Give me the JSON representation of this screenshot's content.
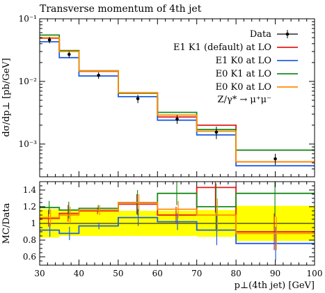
{
  "chart_data": [
    {
      "type": "line",
      "title": "Transverse momentum of 4th jet",
      "ylabel": "dσ/dp⊥ [pb/GeV]",
      "yscale": "log",
      "xlim": [
        30,
        100
      ],
      "ylim": [
        0.0003,
        0.1
      ],
      "y_ticks": [
        {
          "value": 0.001,
          "label": "10⁻³"
        },
        {
          "value": 0.01,
          "label": "10⁻²"
        },
        {
          "value": 0.1,
          "label": "10⁻¹"
        }
      ],
      "bin_edges": [
        30,
        35,
        40,
        50,
        60,
        70,
        80,
        100
      ],
      "legend_position": "top-right",
      "legend_extra": "Z/γ* → μ⁺μ⁻",
      "data": {
        "name": "Data",
        "color": "#000000",
        "x": [
          32.5,
          37.5,
          45,
          55,
          65,
          75,
          90
        ],
        "y": [
          0.046,
          0.027,
          0.0125,
          0.0053,
          0.0025,
          0.00155,
          0.00058
        ],
        "err_low": [
          0.0055,
          0.003,
          0.0015,
          0.0008,
          0.0004,
          0.00035,
          0.00012
        ],
        "err_high": [
          0.0055,
          0.003,
          0.0015,
          0.0008,
          0.0004,
          0.00035,
          0.00012
        ]
      },
      "series": [
        {
          "name": "E1 K1 (default) at LO",
          "color": "#e41a1c",
          "values": [
            0.049,
            0.031,
            0.0145,
            0.0065,
            0.0027,
            0.002,
            0.00052
          ]
        },
        {
          "name": "E1 K0 at LO",
          "color": "#1f5fe0",
          "values": [
            0.043,
            0.024,
            0.0122,
            0.0057,
            0.0024,
            0.0014,
            0.00045
          ]
        },
        {
          "name": "E0 K1 at LO",
          "color": "#1b8a1b",
          "values": [
            0.055,
            0.031,
            0.0148,
            0.0065,
            0.0032,
            0.0017,
            0.0008
          ]
        },
        {
          "name": "E0 K0 at LO",
          "color": "#ff8c00",
          "values": [
            0.05,
            0.03,
            0.0147,
            0.0066,
            0.0029,
            0.0016,
            0.00052
          ]
        }
      ]
    },
    {
      "type": "line",
      "ylabel": "MC/Data",
      "xlabel": "p⊥(4th jet) [GeV]",
      "xlim": [
        30,
        100
      ],
      "ylim": [
        0.5,
        1.5
      ],
      "x_ticks": [
        30,
        40,
        50,
        60,
        70,
        80,
        90,
        100
      ],
      "y_ticks": [
        0.6,
        0.8,
        1,
        1.2,
        1.4
      ],
      "bin_edges": [
        30,
        35,
        40,
        50,
        60,
        70,
        80,
        100
      ],
      "band": {
        "color": "#ffff00",
        "low": [
          0.83,
          0.85,
          0.85,
          0.85,
          0.85,
          0.84,
          0.79
        ],
        "high": [
          1.17,
          1.15,
          1.15,
          1.15,
          1.15,
          1.16,
          1.21
        ]
      },
      "series": [
        {
          "name": "E1 K1 (default) at LO",
          "color": "#e41a1c",
          "values": [
            1.06,
            1.12,
            1.15,
            1.23,
            1.1,
            1.43,
            0.9
          ],
          "err": [
            0.1,
            0.1,
            0.04,
            0.12,
            0.1,
            0.3,
            0.22
          ]
        },
        {
          "name": "E1 K0 at LO",
          "color": "#1f5fe0",
          "values": [
            0.92,
            0.88,
            0.97,
            1.07,
            1.02,
            0.92,
            0.76
          ],
          "err": [
            0.08,
            0.08,
            0.04,
            0.1,
            0.1,
            0.18,
            0.2
          ]
        },
        {
          "name": "E0 K1 at LO",
          "color": "#1b8a1b",
          "values": [
            1.19,
            1.16,
            1.18,
            1.25,
            1.36,
            1.2,
            1.36
          ],
          "err": [
            0.08,
            0.1,
            0.04,
            0.15,
            0.14,
            0.28,
            0.28
          ]
        },
        {
          "name": "E0 K0 at LO",
          "color": "#ff8c00",
          "values": [
            1.07,
            1.1,
            1.16,
            1.25,
            1.17,
            1.1,
            0.88
          ],
          "err": [
            0.1,
            0.1,
            0.06,
            0.1,
            0.1,
            0.2,
            0.2
          ]
        }
      ]
    }
  ]
}
